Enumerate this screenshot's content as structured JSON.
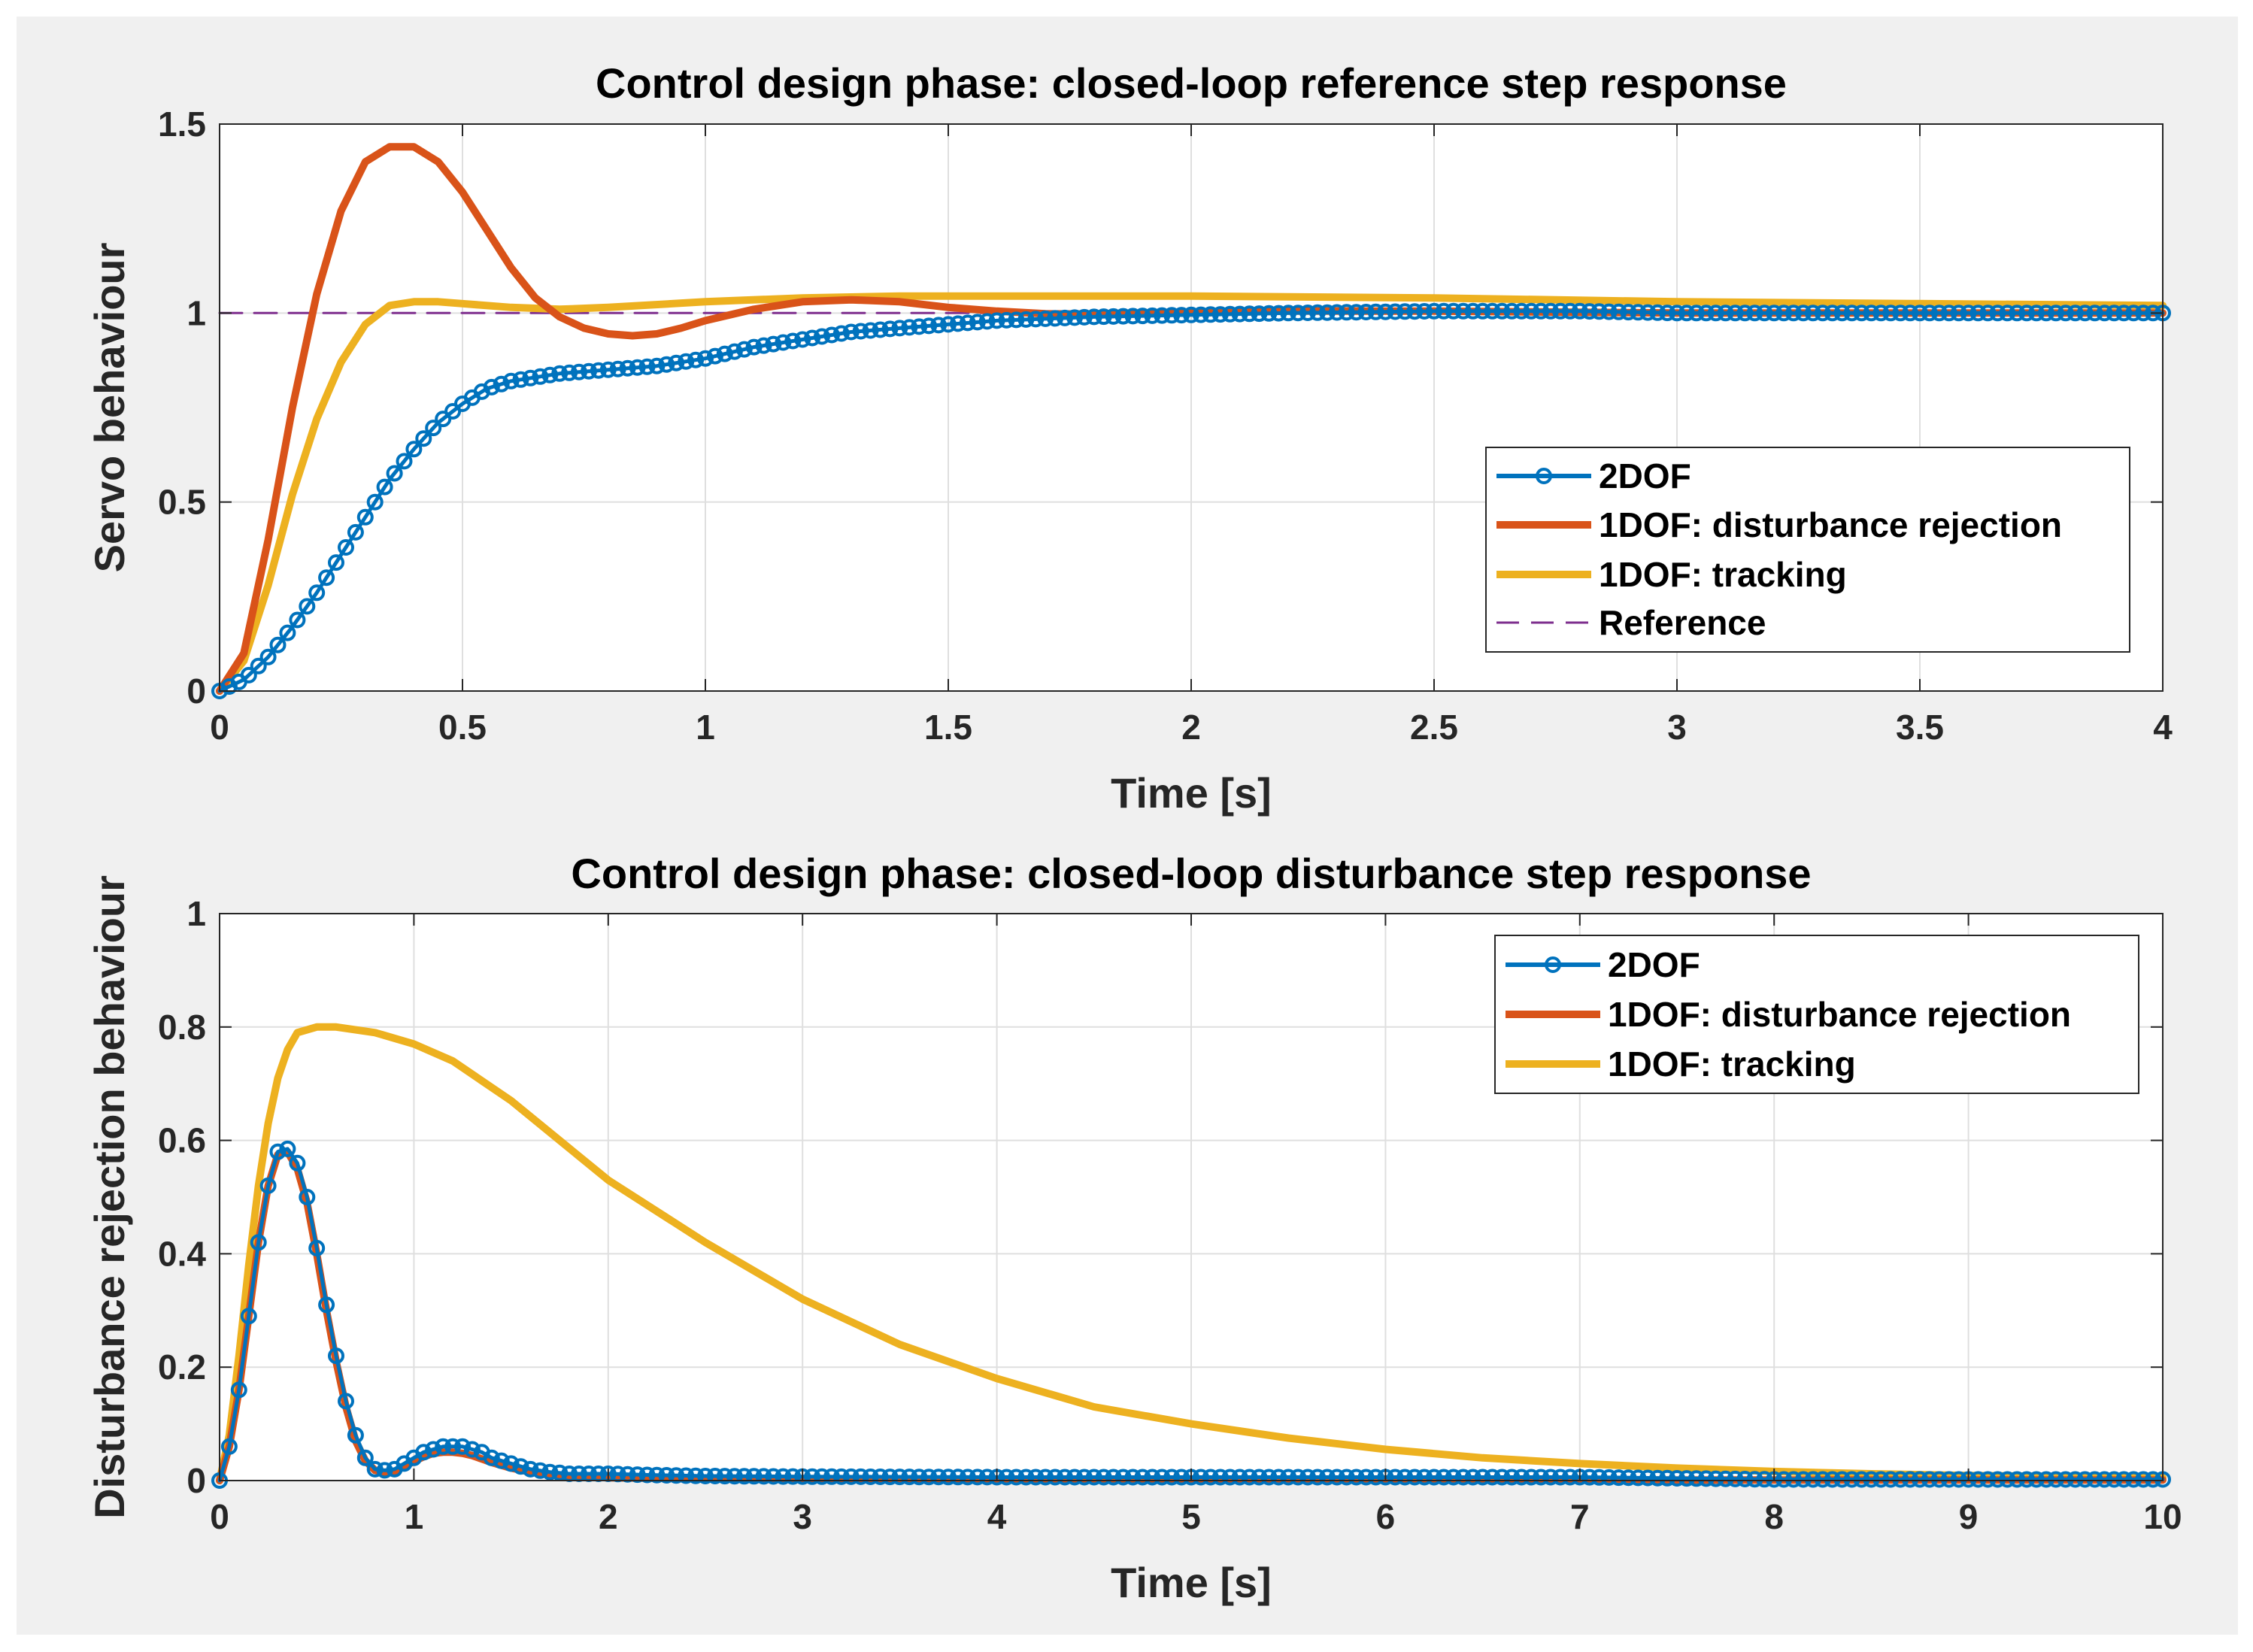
{
  "colors": {
    "background": "#f0f0f0",
    "axes": "#ffffff",
    "grid": "#dfdfdf",
    "axis_line": "#262626",
    "series_2dof": "#0072bd",
    "series_1dof_disturbance": "#d95319",
    "series_1dof_tracking": "#edb120",
    "reference": "#7e2f8e"
  },
  "chart_data": [
    {
      "type": "line",
      "title": "Control design phase: closed-loop reference step response",
      "xlabel": "Time [s]",
      "ylabel": "Servo behaviour",
      "xlim": [
        0,
        4
      ],
      "ylim": [
        0,
        1.5
      ],
      "xticks": [
        0,
        0.5,
        1,
        1.5,
        2,
        2.5,
        3,
        3.5,
        4
      ],
      "xtick_labels": [
        "0",
        "0.5",
        "1",
        "1.5",
        "2",
        "2.5",
        "3",
        "3.5",
        "4"
      ],
      "yticks": [
        0,
        0.5,
        1,
        1.5
      ],
      "ytick_labels": [
        "0",
        "0.5",
        "1",
        "1.5"
      ],
      "grid": true,
      "legend_position": "right",
      "series": [
        {
          "name": "2DOF",
          "color_key": "series_2dof",
          "marker": "circle",
          "x": [
            0,
            0.05,
            0.1,
            0.15,
            0.2,
            0.25,
            0.3,
            0.35,
            0.4,
            0.45,
            0.5,
            0.55,
            0.6,
            0.7,
            0.8,
            0.9,
            1.0,
            1.1,
            1.2,
            1.3,
            1.4,
            1.5,
            1.6,
            1.8,
            2.0,
            2.2,
            2.5,
            2.8,
            3.0,
            3.5,
            4.0
          ],
          "y": [
            0,
            0.03,
            0.09,
            0.17,
            0.26,
            0.36,
            0.46,
            0.56,
            0.64,
            0.71,
            0.76,
            0.8,
            0.82,
            0.84,
            0.85,
            0.86,
            0.88,
            0.91,
            0.93,
            0.95,
            0.96,
            0.97,
            0.98,
            0.99,
            0.995,
            1.0,
            1.005,
            1.005,
            1.0,
            1.0,
            1.0
          ]
        },
        {
          "name": "1DOF: disturbance rejection",
          "color_key": "series_1dof_disturbance",
          "marker": "none",
          "x": [
            0,
            0.05,
            0.1,
            0.15,
            0.2,
            0.25,
            0.3,
            0.35,
            0.4,
            0.45,
            0.5,
            0.55,
            0.6,
            0.65,
            0.7,
            0.75,
            0.8,
            0.85,
            0.9,
            0.95,
            1.0,
            1.1,
            1.2,
            1.3,
            1.4,
            1.5,
            1.6,
            1.7,
            1.8,
            2.0,
            2.2,
            2.5,
            3.0,
            3.5,
            4.0
          ],
          "y": [
            0,
            0.1,
            0.4,
            0.75,
            1.05,
            1.27,
            1.4,
            1.44,
            1.44,
            1.4,
            1.32,
            1.22,
            1.12,
            1.04,
            0.99,
            0.96,
            0.945,
            0.94,
            0.945,
            0.96,
            0.98,
            1.01,
            1.03,
            1.035,
            1.03,
            1.015,
            1.005,
            0.998,
            0.997,
            1.0,
            1.005,
            1.005,
            1.0,
            1.0,
            1.0
          ]
        },
        {
          "name": "1DOF: tracking",
          "color_key": "series_1dof_tracking",
          "marker": "none",
          "x": [
            0,
            0.05,
            0.1,
            0.15,
            0.2,
            0.25,
            0.3,
            0.35,
            0.4,
            0.45,
            0.5,
            0.6,
            0.7,
            0.8,
            1.0,
            1.2,
            1.4,
            1.6,
            2.0,
            2.5,
            3.0,
            3.5,
            4.0
          ],
          "y": [
            0,
            0.08,
            0.28,
            0.52,
            0.72,
            0.87,
            0.97,
            1.02,
            1.03,
            1.03,
            1.025,
            1.015,
            1.01,
            1.015,
            1.03,
            1.04,
            1.045,
            1.045,
            1.045,
            1.04,
            1.03,
            1.025,
            1.02
          ]
        },
        {
          "name": "Reference",
          "color_key": "reference",
          "marker": "none",
          "style": "dashed",
          "x": [
            0,
            4
          ],
          "y": [
            1,
            1
          ]
        }
      ]
    },
    {
      "type": "line",
      "title": "Control design phase: closed-loop disturbance step response",
      "xlabel": "Time [s]",
      "ylabel": "Disturbance rejection behaviour",
      "xlim": [
        0,
        10
      ],
      "ylim": [
        0,
        1
      ],
      "xticks": [
        0,
        1,
        2,
        3,
        4,
        5,
        6,
        7,
        8,
        9,
        10
      ],
      "xtick_labels": [
        "0",
        "1",
        "2",
        "3",
        "4",
        "5",
        "6",
        "7",
        "8",
        "9",
        "10"
      ],
      "yticks": [
        0,
        0.2,
        0.4,
        0.6,
        0.8,
        1
      ],
      "ytick_labels": [
        "0",
        "0.2",
        "0.4",
        "0.6",
        "0.8",
        "1"
      ],
      "grid": true,
      "legend_position": "top-right",
      "series": [
        {
          "name": "2DOF",
          "color_key": "series_2dof",
          "marker": "circle",
          "x": [
            0,
            0.05,
            0.1,
            0.15,
            0.2,
            0.25,
            0.3,
            0.35,
            0.4,
            0.45,
            0.5,
            0.55,
            0.6,
            0.65,
            0.7,
            0.75,
            0.8,
            0.85,
            0.9,
            0.95,
            1.0,
            1.05,
            1.1,
            1.15,
            1.2,
            1.25,
            1.3,
            1.35,
            1.4,
            1.5,
            1.6,
            1.7,
            1.8,
            2.0,
            2.2,
            2.5,
            3,
            4,
            5,
            6,
            7,
            7.5,
            8,
            9,
            10
          ],
          "y": [
            0,
            0.06,
            0.16,
            0.29,
            0.42,
            0.52,
            0.58,
            0.585,
            0.56,
            0.5,
            0.41,
            0.31,
            0.22,
            0.14,
            0.08,
            0.04,
            0.02,
            0.018,
            0.02,
            0.03,
            0.04,
            0.05,
            0.055,
            0.06,
            0.06,
            0.06,
            0.055,
            0.05,
            0.04,
            0.03,
            0.02,
            0.015,
            0.012,
            0.012,
            0.01,
            0.008,
            0.007,
            0.006,
            0.006,
            0.006,
            0.006,
            0.004,
            0.002,
            0.002,
            0.002
          ]
        },
        {
          "name": "1DOF: disturbance rejection",
          "color_key": "series_1dof_disturbance",
          "marker": "none",
          "x": [
            0,
            0.05,
            0.1,
            0.15,
            0.2,
            0.25,
            0.3,
            0.35,
            0.4,
            0.45,
            0.5,
            0.55,
            0.6,
            0.65,
            0.7,
            0.75,
            0.8,
            0.85,
            0.9,
            0.95,
            1.0,
            1.05,
            1.1,
            1.15,
            1.2,
            1.25,
            1.3,
            1.35,
            1.4,
            1.5,
            1.6,
            1.7,
            1.8,
            2.0,
            2.5,
            3,
            4,
            5,
            6,
            7,
            8,
            9,
            10
          ],
          "y": [
            0,
            0.06,
            0.16,
            0.29,
            0.42,
            0.52,
            0.575,
            0.58,
            0.55,
            0.49,
            0.4,
            0.3,
            0.21,
            0.13,
            0.07,
            0.035,
            0.018,
            0.014,
            0.016,
            0.025,
            0.034,
            0.042,
            0.048,
            0.05,
            0.05,
            0.048,
            0.044,
            0.038,
            0.032,
            0.022,
            0.015,
            0.01,
            0.008,
            0.005,
            0.003,
            0.002,
            0.001,
            0.001,
            0.001,
            0.001,
            0.001,
            0.001,
            0.001
          ]
        },
        {
          "name": "1DOF: tracking",
          "color_key": "series_1dof_tracking",
          "marker": "none",
          "x": [
            0,
            0.05,
            0.1,
            0.15,
            0.2,
            0.25,
            0.3,
            0.35,
            0.4,
            0.5,
            0.6,
            0.7,
            0.8,
            1.0,
            1.2,
            1.5,
            2.0,
            2.5,
            3,
            3.5,
            4,
            4.5,
            5,
            5.5,
            6,
            6.5,
            7,
            7.5,
            8,
            8.5,
            9,
            9.5,
            10
          ],
          "y": [
            0,
            0.08,
            0.22,
            0.38,
            0.52,
            0.63,
            0.71,
            0.76,
            0.79,
            0.8,
            0.8,
            0.795,
            0.79,
            0.77,
            0.74,
            0.67,
            0.53,
            0.42,
            0.32,
            0.24,
            0.18,
            0.13,
            0.1,
            0.075,
            0.055,
            0.04,
            0.03,
            0.022,
            0.016,
            0.012,
            0.009,
            0.007,
            0.005
          ]
        }
      ]
    }
  ]
}
